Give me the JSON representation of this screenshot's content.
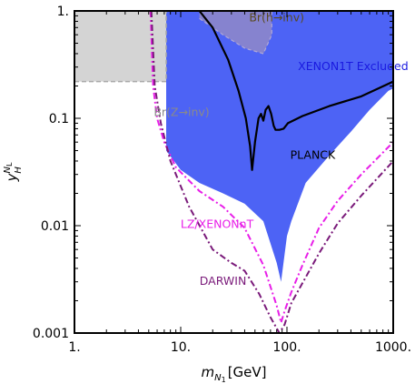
{
  "chart_data": {
    "type": "area",
    "x_scale": "log",
    "y_scale": "log",
    "xlim": [
      1,
      1000
    ],
    "ylim": [
      0.001,
      1
    ],
    "xlabel_main": "m",
    "xlabel_sub": "N",
    "xlabel_subsub": "1",
    "xlabel_unit": "[GeV]",
    "ylabel_main": "y",
    "ylabel_sub": "H",
    "ylabel_sup": "N",
    "ylabel_supsub": "L",
    "x_ticks": [
      {
        "value": 1,
        "label": "1."
      },
      {
        "value": 10,
        "label": "10."
      },
      {
        "value": 100,
        "label": "100."
      },
      {
        "value": 1000,
        "label": "1000."
      }
    ],
    "y_ticks": [
      {
        "value": 1,
        "label": "1."
      },
      {
        "value": 0.1,
        "label": "0.1"
      },
      {
        "value": 0.01,
        "label": "0.01"
      },
      {
        "value": 0.001,
        "label": "0.001"
      }
    ],
    "colors": {
      "xenon1t": "#4d63f5",
      "br_z": "#d4d4d4",
      "br_h": "#9a8ec2",
      "planck": "#000000",
      "lz": "#e81ee8",
      "darwin": "#7a1a7a"
    },
    "regions": [
      {
        "name": "XENON1T Excluded",
        "color": "#4d63f5",
        "points": [
          [
            7.3,
            1
          ],
          [
            1000,
            1
          ],
          [
            1000,
            0.19
          ],
          [
            900,
            0.18
          ],
          [
            600,
            0.12
          ],
          [
            400,
            0.075
          ],
          [
            250,
            0.045
          ],
          [
            150,
            0.025
          ],
          [
            110,
            0.011
          ],
          [
            100,
            0.008
          ],
          [
            88,
            0.003
          ],
          [
            80,
            0.0045
          ],
          [
            60,
            0.011
          ],
          [
            40,
            0.016
          ],
          [
            25,
            0.02
          ],
          [
            15,
            0.025
          ],
          [
            10,
            0.033
          ],
          [
            7.3,
            0.05
          ]
        ]
      },
      {
        "name": "Br(Z→inv)",
        "color": "#d4d4d4",
        "points": [
          [
            1,
            1
          ],
          [
            7.3,
            1
          ],
          [
            7.3,
            0.22
          ],
          [
            1,
            0.22
          ]
        ]
      },
      {
        "name": "Br(h→inv)",
        "color": "#9a8ec2",
        "points": [
          [
            15,
            1
          ],
          [
            72,
            1
          ],
          [
            72,
            0.6
          ],
          [
            60,
            0.4
          ],
          [
            40,
            0.45
          ],
          [
            25,
            0.6
          ],
          [
            15,
            0.85
          ]
        ]
      }
    ],
    "series": [
      {
        "name": "PLANCK",
        "color": "#000000",
        "style": "solid",
        "points": [
          [
            15,
            1
          ],
          [
            20,
            0.7
          ],
          [
            28,
            0.35
          ],
          [
            35,
            0.18
          ],
          [
            41,
            0.1
          ],
          [
            45,
            0.055
          ],
          [
            47,
            0.033
          ],
          [
            50,
            0.06
          ],
          [
            54,
            0.1
          ],
          [
            57,
            0.11
          ],
          [
            60,
            0.095
          ],
          [
            63,
            0.12
          ],
          [
            67,
            0.13
          ],
          [
            71,
            0.11
          ],
          [
            75,
            0.085
          ],
          [
            78,
            0.078
          ],
          [
            85,
            0.078
          ],
          [
            93,
            0.08
          ],
          [
            102,
            0.09
          ],
          [
            140,
            0.105
          ],
          [
            250,
            0.13
          ],
          [
            500,
            0.16
          ],
          [
            1000,
            0.22
          ]
        ]
      },
      {
        "name": "LZ/XENONnT",
        "color": "#e81ee8",
        "style": "dashdot",
        "points": [
          [
            5.2,
            1
          ],
          [
            5.5,
            0.2
          ],
          [
            6,
            0.1
          ],
          [
            7,
            0.06
          ],
          [
            9,
            0.035
          ],
          [
            15,
            0.021
          ],
          [
            25,
            0.015
          ],
          [
            40,
            0.0095
          ],
          [
            60,
            0.0043
          ],
          [
            80,
            0.0018
          ],
          [
            88,
            0.00125
          ],
          [
            95,
            0.0016
          ],
          [
            110,
            0.0024
          ],
          [
            140,
            0.0043
          ],
          [
            200,
            0.0095
          ],
          [
            300,
            0.017
          ],
          [
            500,
            0.03
          ],
          [
            700,
            0.042
          ],
          [
            1000,
            0.06
          ]
        ]
      },
      {
        "name": "DARWIN",
        "color": "#7a1a7a",
        "style": "dashdot",
        "points": [
          [
            5.3,
            1
          ],
          [
            5.7,
            0.2
          ],
          [
            6.5,
            0.09
          ],
          [
            8,
            0.04
          ],
          [
            12,
            0.015
          ],
          [
            20,
            0.006
          ],
          [
            30,
            0.0045
          ],
          [
            40,
            0.0038
          ],
          [
            55,
            0.0023
          ],
          [
            70,
            0.0014
          ],
          [
            85,
            0.001
          ],
          [
            95,
            0.0012
          ],
          [
            110,
            0.0019
          ],
          [
            150,
            0.0033
          ],
          [
            200,
            0.0055
          ],
          [
            300,
            0.0105
          ],
          [
            500,
            0.019
          ],
          [
            1000,
            0.04
          ]
        ]
      }
    ],
    "annotations": [
      {
        "text": "Br(h→inv)",
        "x": 80,
        "y": 0.8,
        "color": "#5a4a20"
      },
      {
        "text": "XENON1T Excluded",
        "x": 420,
        "y": 0.28,
        "color": "#1a1ae0"
      },
      {
        "text": "Br(Z→inv)",
        "x": 10.2,
        "y": 0.105,
        "color": "#8a8a8a"
      },
      {
        "text": "PLANCK",
        "x": 175,
        "y": 0.042,
        "color": "#000000"
      },
      {
        "text": "LZ/XENONnT",
        "x": 22,
        "y": 0.0095,
        "color": "#e81ee8"
      },
      {
        "text": "DARWIN",
        "x": 25,
        "y": 0.0028,
        "color": "#7a1a7a"
      }
    ]
  }
}
